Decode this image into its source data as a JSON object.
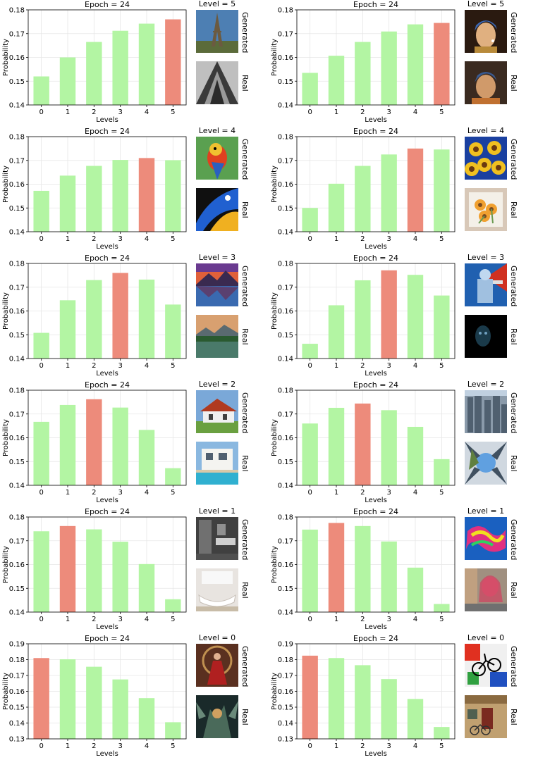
{
  "colors": {
    "bar_default": "#b3f5a3",
    "bar_highlight": "#ed8b7b",
    "grid": "#e6e6e6",
    "axis": "#000000"
  },
  "chart_data": [
    {
      "type": "bar",
      "title": "Epoch = 24",
      "xlabel": "Levels",
      "ylabel": "Probability",
      "categories": [
        "0",
        "1",
        "2",
        "3",
        "4",
        "5"
      ],
      "values": [
        0.152,
        0.16,
        0.1665,
        0.1712,
        0.1742,
        0.176
      ],
      "highlight_index": 5,
      "ylim": [
        0.14,
        0.18
      ],
      "yticks": [
        0.14,
        0.15,
        0.16,
        0.17,
        0.18
      ],
      "grid": true,
      "level_label": "Level = 5",
      "generated_label": "Generated",
      "real_label": "Real",
      "generated_icon": "eiffel-tower-photo",
      "real_icon": "eiffel-tower-bw-photo"
    },
    {
      "type": "bar",
      "title": "Epoch = 24",
      "xlabel": "Levels",
      "ylabel": "Probability",
      "categories": [
        "0",
        "1",
        "2",
        "3",
        "4",
        "5"
      ],
      "values": [
        0.1535,
        0.1607,
        0.1665,
        0.1709,
        0.1739,
        0.1745
      ],
      "highlight_index": 5,
      "ylim": [
        0.14,
        0.18
      ],
      "yticks": [
        0.14,
        0.15,
        0.16,
        0.17,
        0.18
      ],
      "grid": true,
      "level_label": "Level = 5",
      "generated_label": "Generated",
      "real_label": "Real",
      "generated_icon": "pearl-earring-painting",
      "real_icon": "pearl-earring-mosaic"
    },
    {
      "type": "bar",
      "title": "Epoch = 24",
      "xlabel": "Levels",
      "ylabel": "Probability",
      "categories": [
        "0",
        "1",
        "2",
        "3",
        "4",
        "5"
      ],
      "values": [
        0.1572,
        0.1636,
        0.1677,
        0.1702,
        0.171,
        0.1701
      ],
      "highlight_index": 4,
      "ylim": [
        0.14,
        0.18
      ],
      "yticks": [
        0.14,
        0.15,
        0.16,
        0.17,
        0.18
      ],
      "grid": true,
      "level_label": "Level = 4",
      "generated_label": "Generated",
      "real_label": "Real",
      "generated_icon": "parrot-painting",
      "real_icon": "macaw-photo"
    },
    {
      "type": "bar",
      "title": "Epoch = 24",
      "xlabel": "Levels",
      "ylabel": "Probability",
      "categories": [
        "0",
        "1",
        "2",
        "3",
        "4",
        "5"
      ],
      "values": [
        0.15,
        0.1602,
        0.1677,
        0.1725,
        0.175,
        0.1746
      ],
      "highlight_index": 4,
      "ylim": [
        0.14,
        0.18
      ],
      "yticks": [
        0.14,
        0.15,
        0.16,
        0.17,
        0.18
      ],
      "grid": true,
      "level_label": "Level = 4",
      "generated_label": "Generated",
      "real_label": "Real",
      "generated_icon": "sunflowers-painting",
      "real_icon": "sunflowers-watercolor"
    },
    {
      "type": "bar",
      "title": "Epoch = 24",
      "xlabel": "Levels",
      "ylabel": "Probability",
      "categories": [
        "0",
        "1",
        "2",
        "3",
        "4",
        "5"
      ],
      "values": [
        0.1508,
        0.1645,
        0.173,
        0.176,
        0.1732,
        0.1627
      ],
      "highlight_index": 3,
      "ylim": [
        0.14,
        0.18
      ],
      "yticks": [
        0.14,
        0.15,
        0.16,
        0.17,
        0.18
      ],
      "grid": true,
      "level_label": "Level = 3",
      "generated_label": "Generated",
      "real_label": "Real",
      "generated_icon": "mountain-lake-sunset",
      "real_icon": "mountain-lake-photo"
    },
    {
      "type": "bar",
      "title": "Epoch = 24",
      "xlabel": "Levels",
      "ylabel": "Probability",
      "categories": [
        "0",
        "1",
        "2",
        "3",
        "4",
        "5"
      ],
      "values": [
        0.1462,
        0.1624,
        0.1729,
        0.1771,
        0.1752,
        0.1665
      ],
      "highlight_index": 3,
      "ylim": [
        0.14,
        0.18
      ],
      "yticks": [
        0.14,
        0.15,
        0.16,
        0.17,
        0.18
      ],
      "grid": true,
      "level_label": "Level = 3",
      "generated_label": "Generated",
      "real_label": "Real",
      "generated_icon": "robot-warrior-art",
      "real_icon": "dark-face-photo"
    },
    {
      "type": "bar",
      "title": "Epoch = 24",
      "xlabel": "Levels",
      "ylabel": "Probability",
      "categories": [
        "0",
        "1",
        "2",
        "3",
        "4",
        "5"
      ],
      "values": [
        0.1667,
        0.1738,
        0.1762,
        0.1727,
        0.1633,
        0.1472
      ],
      "highlight_index": 2,
      "ylim": [
        0.14,
        0.18
      ],
      "yticks": [
        0.14,
        0.15,
        0.16,
        0.17,
        0.18
      ],
      "grid": true,
      "level_label": "Level = 2",
      "generated_label": "Generated",
      "real_label": "Real",
      "generated_icon": "house-red-roof",
      "real_icon": "villa-pool"
    },
    {
      "type": "bar",
      "title": "Epoch = 24",
      "xlabel": "Levels",
      "ylabel": "Probability",
      "categories": [
        "0",
        "1",
        "2",
        "3",
        "4",
        "5"
      ],
      "values": [
        0.166,
        0.1726,
        0.1744,
        0.1716,
        0.1646,
        0.151
      ],
      "highlight_index": 2,
      "ylim": [
        0.14,
        0.18
      ],
      "yticks": [
        0.14,
        0.15,
        0.16,
        0.17,
        0.18
      ],
      "grid": true,
      "level_label": "Level = 2",
      "generated_label": "Generated",
      "real_label": "Real",
      "generated_icon": "city-aerial",
      "real_icon": "city-fisheye"
    },
    {
      "type": "bar",
      "title": "Epoch = 24",
      "xlabel": "Levels",
      "ylabel": "Probability",
      "categories": [
        "0",
        "1",
        "2",
        "3",
        "4",
        "5"
      ],
      "values": [
        0.174,
        0.1762,
        0.1748,
        0.1696,
        0.1602,
        0.1454
      ],
      "highlight_index": 1,
      "ylim": [
        0.14,
        0.18
      ],
      "yticks": [
        0.14,
        0.15,
        0.16,
        0.17,
        0.18
      ],
      "grid": true,
      "level_label": "Level = 1",
      "generated_label": "Generated",
      "real_label": "Real",
      "generated_icon": "bathroom-dark",
      "real_icon": "bathroom-bright"
    },
    {
      "type": "bar",
      "title": "Epoch = 24",
      "xlabel": "Levels",
      "ylabel": "Probability",
      "categories": [
        "0",
        "1",
        "2",
        "3",
        "4",
        "5"
      ],
      "values": [
        0.1747,
        0.1775,
        0.1762,
        0.1697,
        0.1587,
        0.1434
      ],
      "highlight_index": 1,
      "ylim": [
        0.14,
        0.18
      ],
      "yticks": [
        0.14,
        0.15,
        0.16,
        0.17,
        0.18
      ],
      "grid": true,
      "level_label": "Level = 1",
      "generated_label": "Generated",
      "real_label": "Real",
      "generated_icon": "graffiti-art",
      "real_icon": "street-mural"
    },
    {
      "type": "bar",
      "title": "Epoch = 24",
      "xlabel": "Levels",
      "ylabel": "Probability",
      "categories": [
        "0",
        "1",
        "2",
        "3",
        "4",
        "5"
      ],
      "values": [
        0.181,
        0.1802,
        0.1755,
        0.1675,
        0.1557,
        0.1405
      ],
      "highlight_index": 0,
      "ylim": [
        0.13,
        0.19
      ],
      "yticks": [
        0.13,
        0.14,
        0.15,
        0.16,
        0.17,
        0.18,
        0.19
      ],
      "grid": true,
      "level_label": "Level = 0",
      "generated_label": "Generated",
      "real_label": "Real",
      "generated_icon": "dancer-fantasy-art",
      "real_icon": "dark-fantasy-art"
    },
    {
      "type": "bar",
      "title": "Epoch = 24",
      "xlabel": "Levels",
      "ylabel": "Probability",
      "categories": [
        "0",
        "1",
        "2",
        "3",
        "4",
        "5"
      ],
      "values": [
        0.1825,
        0.181,
        0.1765,
        0.1677,
        0.1552,
        0.1375
      ],
      "highlight_index": 0,
      "ylim": [
        0.13,
        0.19
      ],
      "yticks": [
        0.13,
        0.14,
        0.15,
        0.16,
        0.17,
        0.18,
        0.19
      ],
      "grid": true,
      "level_label": "Level = 0",
      "generated_label": "Generated",
      "real_label": "Real",
      "generated_icon": "abstract-bicycle-art",
      "real_icon": "old-building-bicycle"
    }
  ]
}
